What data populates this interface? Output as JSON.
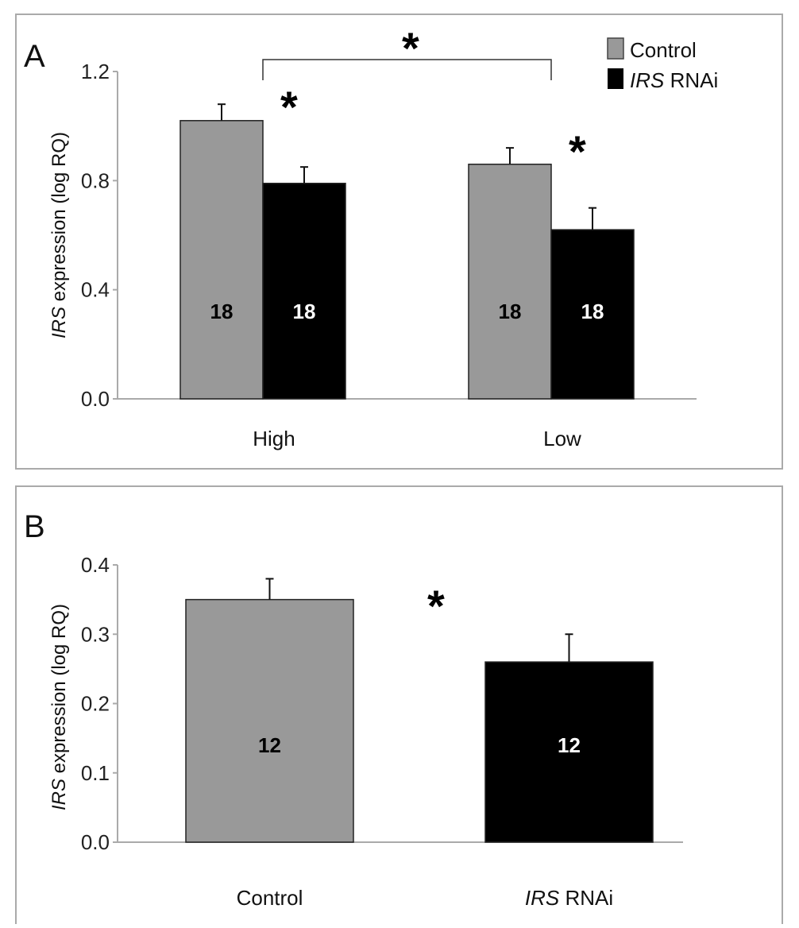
{
  "chart_data": [
    {
      "type": "bar",
      "panel_label": "A",
      "ylabel_italic": "IRS",
      "ylabel_rest": " expression (log RQ)",
      "ylim": [
        0,
        1.2
      ],
      "yticks": [
        "0.0",
        "0.4",
        "0.8",
        "1.2"
      ],
      "ytick_values": [
        0,
        0.4,
        0.8,
        1.2
      ],
      "categories": [
        "High",
        "Low"
      ],
      "series": [
        {
          "name": "Control",
          "name_italic": "",
          "color": "#999999",
          "values": [
            1.02,
            0.86
          ],
          "error": [
            0.06,
            0.06
          ],
          "n_labels": [
            "18",
            "18"
          ]
        },
        {
          "name": " RNAi",
          "name_italic": "IRS",
          "color": "#000000",
          "values": [
            0.79,
            0.62
          ],
          "error": [
            0.06,
            0.08
          ],
          "n_labels": [
            "18",
            "18"
          ]
        }
      ],
      "legend": {
        "position": "top-right"
      },
      "annotations": {
        "bracket_star": "*",
        "high_star": "*",
        "low_star": "*"
      },
      "grid": false
    },
    {
      "type": "bar",
      "panel_label": "B",
      "ylabel_italic": "IRS",
      "ylabel_rest": " expression (log RQ)",
      "ylim": [
        0,
        0.4
      ],
      "yticks": [
        "0.0",
        "0.1",
        "0.2",
        "0.3",
        "0.4"
      ],
      "ytick_values": [
        0,
        0.1,
        0.2,
        0.3,
        0.4
      ],
      "categories": [
        {
          "italic": "",
          "text": "Control"
        },
        {
          "italic": "IRS",
          "text": " RNAi"
        }
      ],
      "values": [
        0.35,
        0.26
      ],
      "error": [
        0.03,
        0.04
      ],
      "colors": [
        "#999999",
        "#000000"
      ],
      "n_labels": [
        "12",
        "12"
      ],
      "annotations": {
        "star": "*"
      },
      "grid": false
    }
  ]
}
